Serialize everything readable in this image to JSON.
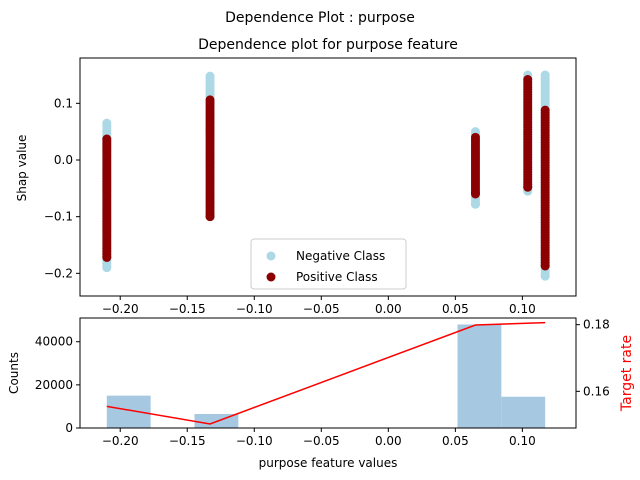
{
  "figure": {
    "suptitle": "Dependence Plot : purpose"
  },
  "chart_data": [
    {
      "type": "scatter",
      "title": "Dependence plot for purpose feature",
      "xlabel": "",
      "ylabel": "Shap value",
      "xlim": [
        -0.23,
        0.14
      ],
      "ylim": [
        -0.24,
        0.18
      ],
      "xticks": [
        -0.2,
        -0.15,
        -0.1,
        -0.05,
        0.0,
        0.05,
        0.1
      ],
      "xtick_labels": [
        "−0.20",
        "−0.15",
        "−0.10",
        "−0.05",
        "0.00",
        "0.05",
        "0.10"
      ],
      "yticks": [
        -0.2,
        -0.1,
        0.0,
        0.1
      ],
      "ytick_labels": [
        "−0.2",
        "−0.1",
        "0.0",
        "0.1"
      ],
      "legend_position": "lower center",
      "series": [
        {
          "name": "Negative Class",
          "color": "#add8e6",
          "columns": [
            {
              "x": -0.21,
              "ymin": -0.19,
              "ymax": 0.065
            },
            {
              "x": -0.133,
              "ymin": -0.1,
              "ymax": 0.148
            },
            {
              "x": 0.065,
              "ymin": -0.078,
              "ymax": 0.05
            },
            {
              "x": 0.104,
              "ymin": -0.055,
              "ymax": 0.15
            },
            {
              "x": 0.117,
              "ymin": -0.205,
              "ymax": 0.15
            }
          ]
        },
        {
          "name": "Positive Class",
          "color": "#8b0000",
          "columns": [
            {
              "x": -0.21,
              "ymin": -0.172,
              "ymax": 0.037
            },
            {
              "x": -0.133,
              "ymin": -0.1,
              "ymax": 0.106
            },
            {
              "x": 0.065,
              "ymin": -0.06,
              "ymax": 0.04
            },
            {
              "x": 0.104,
              "ymin": -0.048,
              "ymax": 0.142
            },
            {
              "x": 0.117,
              "ymin": -0.187,
              "ymax": 0.088
            }
          ]
        }
      ]
    },
    {
      "type": "bar",
      "title": "",
      "xlabel": "purpose feature values",
      "ylabel": "Counts",
      "y2label": "Target rate",
      "y2label_color": "#ff0000",
      "xlim": [
        -0.23,
        0.14
      ],
      "ylim": [
        0,
        51000
      ],
      "y2lim": [
        0.149,
        0.182
      ],
      "xticks": [
        -0.2,
        -0.15,
        -0.1,
        -0.05,
        0.0,
        0.05,
        0.1
      ],
      "xtick_labels": [
        "−0.20",
        "−0.15",
        "−0.10",
        "−0.05",
        "0.00",
        "0.05",
        "0.10"
      ],
      "yticks": [
        0,
        20000,
        40000
      ],
      "ytick_labels": [
        "0",
        "20000",
        "40000"
      ],
      "y2ticks": [
        0.16,
        0.18
      ],
      "y2tick_labels": [
        "0.16",
        "0.18"
      ],
      "bar_color": "#a6c8e0",
      "bars": [
        {
          "x0": -0.21,
          "x1": -0.1773,
          "count": 15000
        },
        {
          "x0": -0.1446,
          "x1": -0.1119,
          "count": 6500
        },
        {
          "x0": 0.0516,
          "x1": 0.0843,
          "count": 48000
        },
        {
          "x0": 0.0843,
          "x1": 0.117,
          "count": 14500
        }
      ],
      "line_color": "#ff0000",
      "line": {
        "x": [
          -0.21,
          -0.133,
          0.065,
          0.117
        ],
        "y": [
          0.1555,
          0.1502,
          0.1799,
          0.1806
        ]
      }
    }
  ]
}
